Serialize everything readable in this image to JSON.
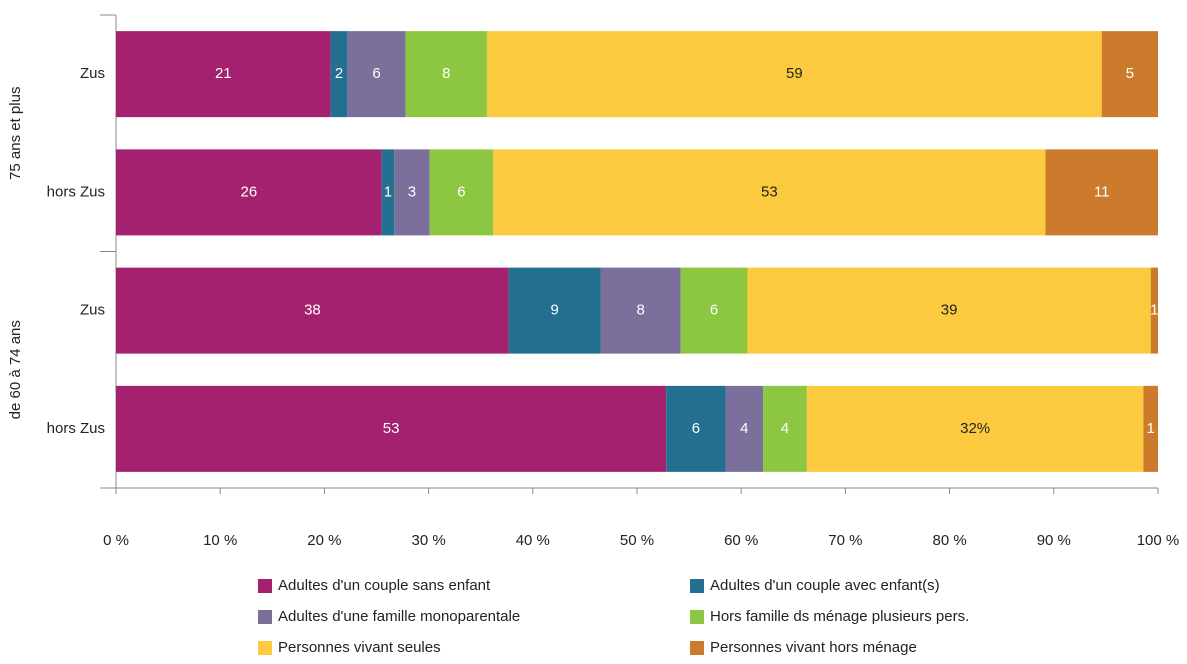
{
  "chart_data": {
    "type": "stacked-barh",
    "groups": [
      "75 ans et plus",
      "de 60 à 74 ans"
    ],
    "categories": [
      "Zus",
      "hors Zus",
      "Zus",
      "hors Zus"
    ],
    "series": [
      {
        "name": "Adultes d'un couple sans enfant",
        "color": "#a3216f",
        "label_color": "#ffffff",
        "values": [
          20.6,
          25.5,
          37.7,
          52.8
        ],
        "value_labels": [
          "21",
          "26",
          "38",
          "53"
        ]
      },
      {
        "name": "Adultes d'un couple avec enfant(s)",
        "color": "#226f90",
        "label_color": "#ffffff",
        "values": [
          1.6,
          1.2,
          8.8,
          5.7
        ],
        "value_labels": [
          "2",
          "1",
          "9",
          "6"
        ]
      },
      {
        "name": "Adultes d'une famille monoparentale",
        "color": "#7b6f9c",
        "label_color": "#ffffff",
        "values": [
          5.6,
          3.4,
          7.7,
          3.6
        ],
        "value_labels": [
          "6",
          "3",
          "8",
          "4"
        ]
      },
      {
        "name": "Hors famille ds ménage plusieurs pers.",
        "color": "#8dc640",
        "label_color": "#ffffff",
        "values": [
          7.8,
          6.1,
          6.4,
          4.2
        ],
        "value_labels": [
          "8",
          "6",
          "6",
          "4"
        ]
      },
      {
        "name": "Personnes vivant seules",
        "color": "#fbca3e",
        "label_color": "#222222",
        "values": [
          59.0,
          53.0,
          38.7,
          32.3
        ],
        "value_labels": [
          "59",
          "53",
          "39",
          "32%"
        ]
      },
      {
        "name": "Personnes vivant hors ménage",
        "color": "#cc7b2d",
        "label_color": "#ffffff",
        "values": [
          5.4,
          10.8,
          0.7,
          1.4
        ],
        "value_labels": [
          "5",
          "11",
          "1",
          "1"
        ]
      }
    ],
    "xlim": [
      0,
      100
    ],
    "xticks": [
      {
        "value": 0,
        "label": "0 %"
      },
      {
        "value": 10,
        "label": "10 %"
      },
      {
        "value": 20,
        "label": "20 %"
      },
      {
        "value": 30,
        "label": "30 %"
      },
      {
        "value": 40,
        "label": "40 %"
      },
      {
        "value": 50,
        "label": "50 %"
      },
      {
        "value": 60,
        "label": "60 %"
      },
      {
        "value": 70,
        "label": "70 %"
      },
      {
        "value": 80,
        "label": "80 %"
      },
      {
        "value": 90,
        "label": "90 %"
      },
      {
        "value": 100,
        "label": "100 %"
      }
    ],
    "legend": "bottom"
  }
}
